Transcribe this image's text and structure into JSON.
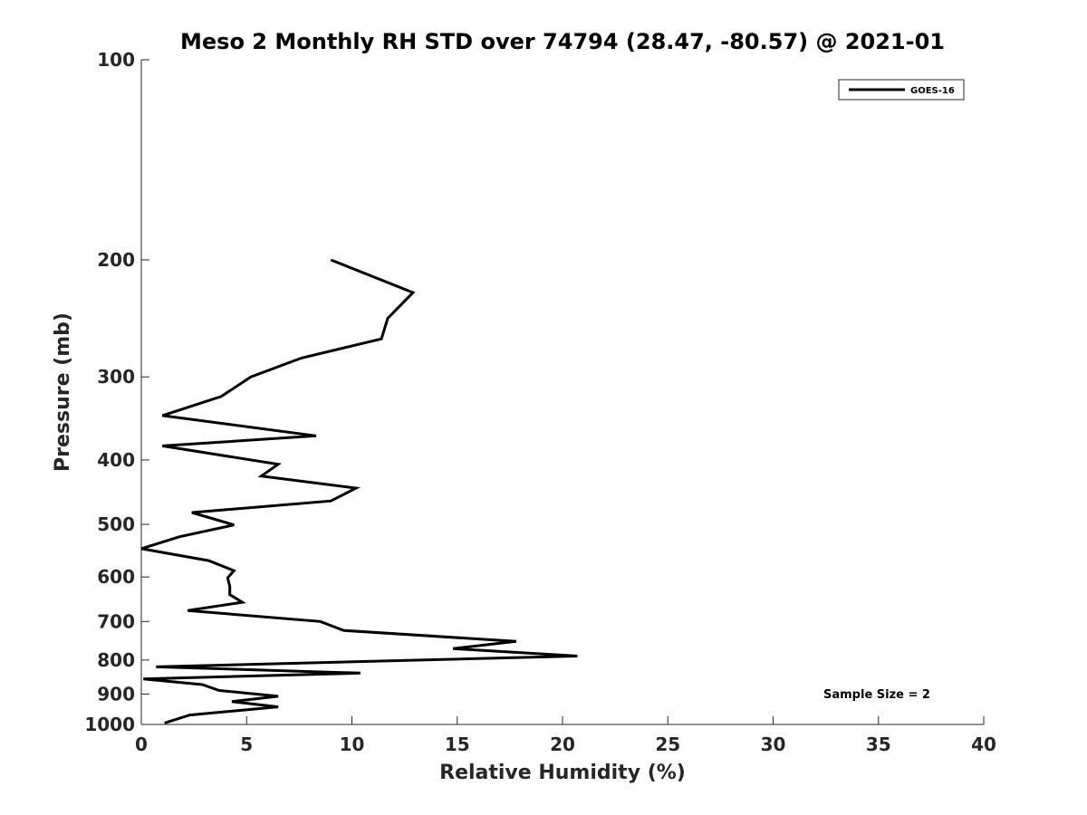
{
  "chart_data": {
    "type": "line",
    "title": "Meso 2 Monthly RH STD over 74794 (28.47, -80.57) @ 2021-01",
    "xlabel": "Relative Humidity (%)",
    "ylabel": "Pressure (mb)",
    "xlim": [
      0,
      40
    ],
    "ylim": [
      100,
      1000
    ],
    "y_scale": "log",
    "y_reversed": true,
    "x_ticks": [
      0,
      5,
      10,
      15,
      20,
      25,
      30,
      35,
      40
    ],
    "y_ticks": [
      100,
      200,
      300,
      400,
      500,
      600,
      700,
      800,
      900,
      1000
    ],
    "grid": false,
    "legend": {
      "placement": "top-right",
      "entries": [
        "GOES-16"
      ]
    },
    "annotation": "Sample Size = 2",
    "series": [
      {
        "name": "GOES-16",
        "color": "#000000",
        "points": [
          [
            9.0,
            200
          ],
          [
            12.9,
            224
          ],
          [
            11.7,
            245
          ],
          [
            11.4,
            263
          ],
          [
            7.6,
            281
          ],
          [
            5.2,
            300
          ],
          [
            3.8,
            321
          ],
          [
            1.0,
            343
          ],
          [
            8.3,
            368
          ],
          [
            1.0,
            381
          ],
          [
            6.5,
            406
          ],
          [
            5.7,
            423
          ],
          [
            10.2,
            441
          ],
          [
            9.0,
            461
          ],
          [
            2.4,
            480
          ],
          [
            4.4,
            501
          ],
          [
            1.8,
            522
          ],
          [
            0.0,
            544
          ],
          [
            3.2,
            567
          ],
          [
            4.4,
            587
          ],
          [
            4.1,
            602
          ],
          [
            4.2,
            620
          ],
          [
            4.2,
            638
          ],
          [
            4.8,
            655
          ],
          [
            2.2,
            674
          ],
          [
            8.5,
            700
          ],
          [
            9.6,
            722
          ],
          [
            17.8,
            750
          ],
          [
            14.8,
            769
          ],
          [
            20.7,
            789
          ],
          [
            0.7,
            819
          ],
          [
            10.4,
            837
          ],
          [
            0.1,
            854
          ],
          [
            2.9,
            871
          ],
          [
            3.7,
            889
          ],
          [
            6.5,
            907
          ],
          [
            4.3,
            924
          ],
          [
            6.5,
            941
          ],
          [
            2.3,
            968
          ],
          [
            1.1,
            995
          ]
        ]
      }
    ]
  }
}
